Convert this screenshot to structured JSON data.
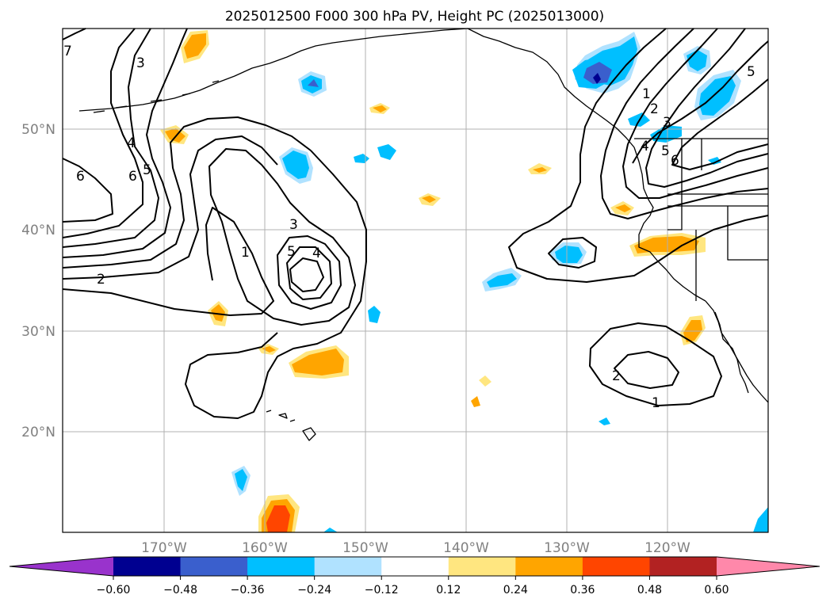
{
  "title": "2025012500 F000 300 hPa PV, Height PC (2025013000)",
  "lat_labels": [
    {
      "lat": 50,
      "text": "50°N"
    },
    {
      "lat": 40,
      "text": "40°N"
    },
    {
      "lat": 30,
      "text": "30°N"
    },
    {
      "lat": 20,
      "text": "20°N"
    }
  ],
  "lon_labels": [
    {
      "lon": -170,
      "text": "170°W"
    },
    {
      "lon": -160,
      "text": "160°W"
    },
    {
      "lon": -150,
      "text": "150°W"
    },
    {
      "lon": -140,
      "text": "140°W"
    },
    {
      "lon": -130,
      "text": "130°W"
    },
    {
      "lon": -120,
      "text": "120°W"
    }
  ],
  "map_extent": {
    "lon_min": -180,
    "lon_max": -110,
    "lat_min": 10,
    "lat_max": 60
  },
  "colorbar": {
    "levels": [
      -0.6,
      -0.48,
      -0.36,
      -0.24,
      -0.12,
      0.12,
      0.24,
      0.36,
      0.48,
      0.6
    ],
    "tick_labels": [
      "−0.60",
      "−0.48",
      "−0.36",
      "−0.24",
      "−0.12",
      "0.12",
      "0.24",
      "0.36",
      "0.48",
      "0.60"
    ],
    "colors": [
      "#9933cc",
      "#000090",
      "#3a5fcd",
      "#00bfff",
      "#b0e2ff",
      "#ffffff",
      "#ffe680",
      "#ffa500",
      "#ff4500",
      "#b22222",
      "#ff88aa"
    ],
    "extend": "both"
  },
  "contour_labels": [
    "1",
    "2",
    "3",
    "4",
    "5",
    "6",
    "7"
  ]
}
